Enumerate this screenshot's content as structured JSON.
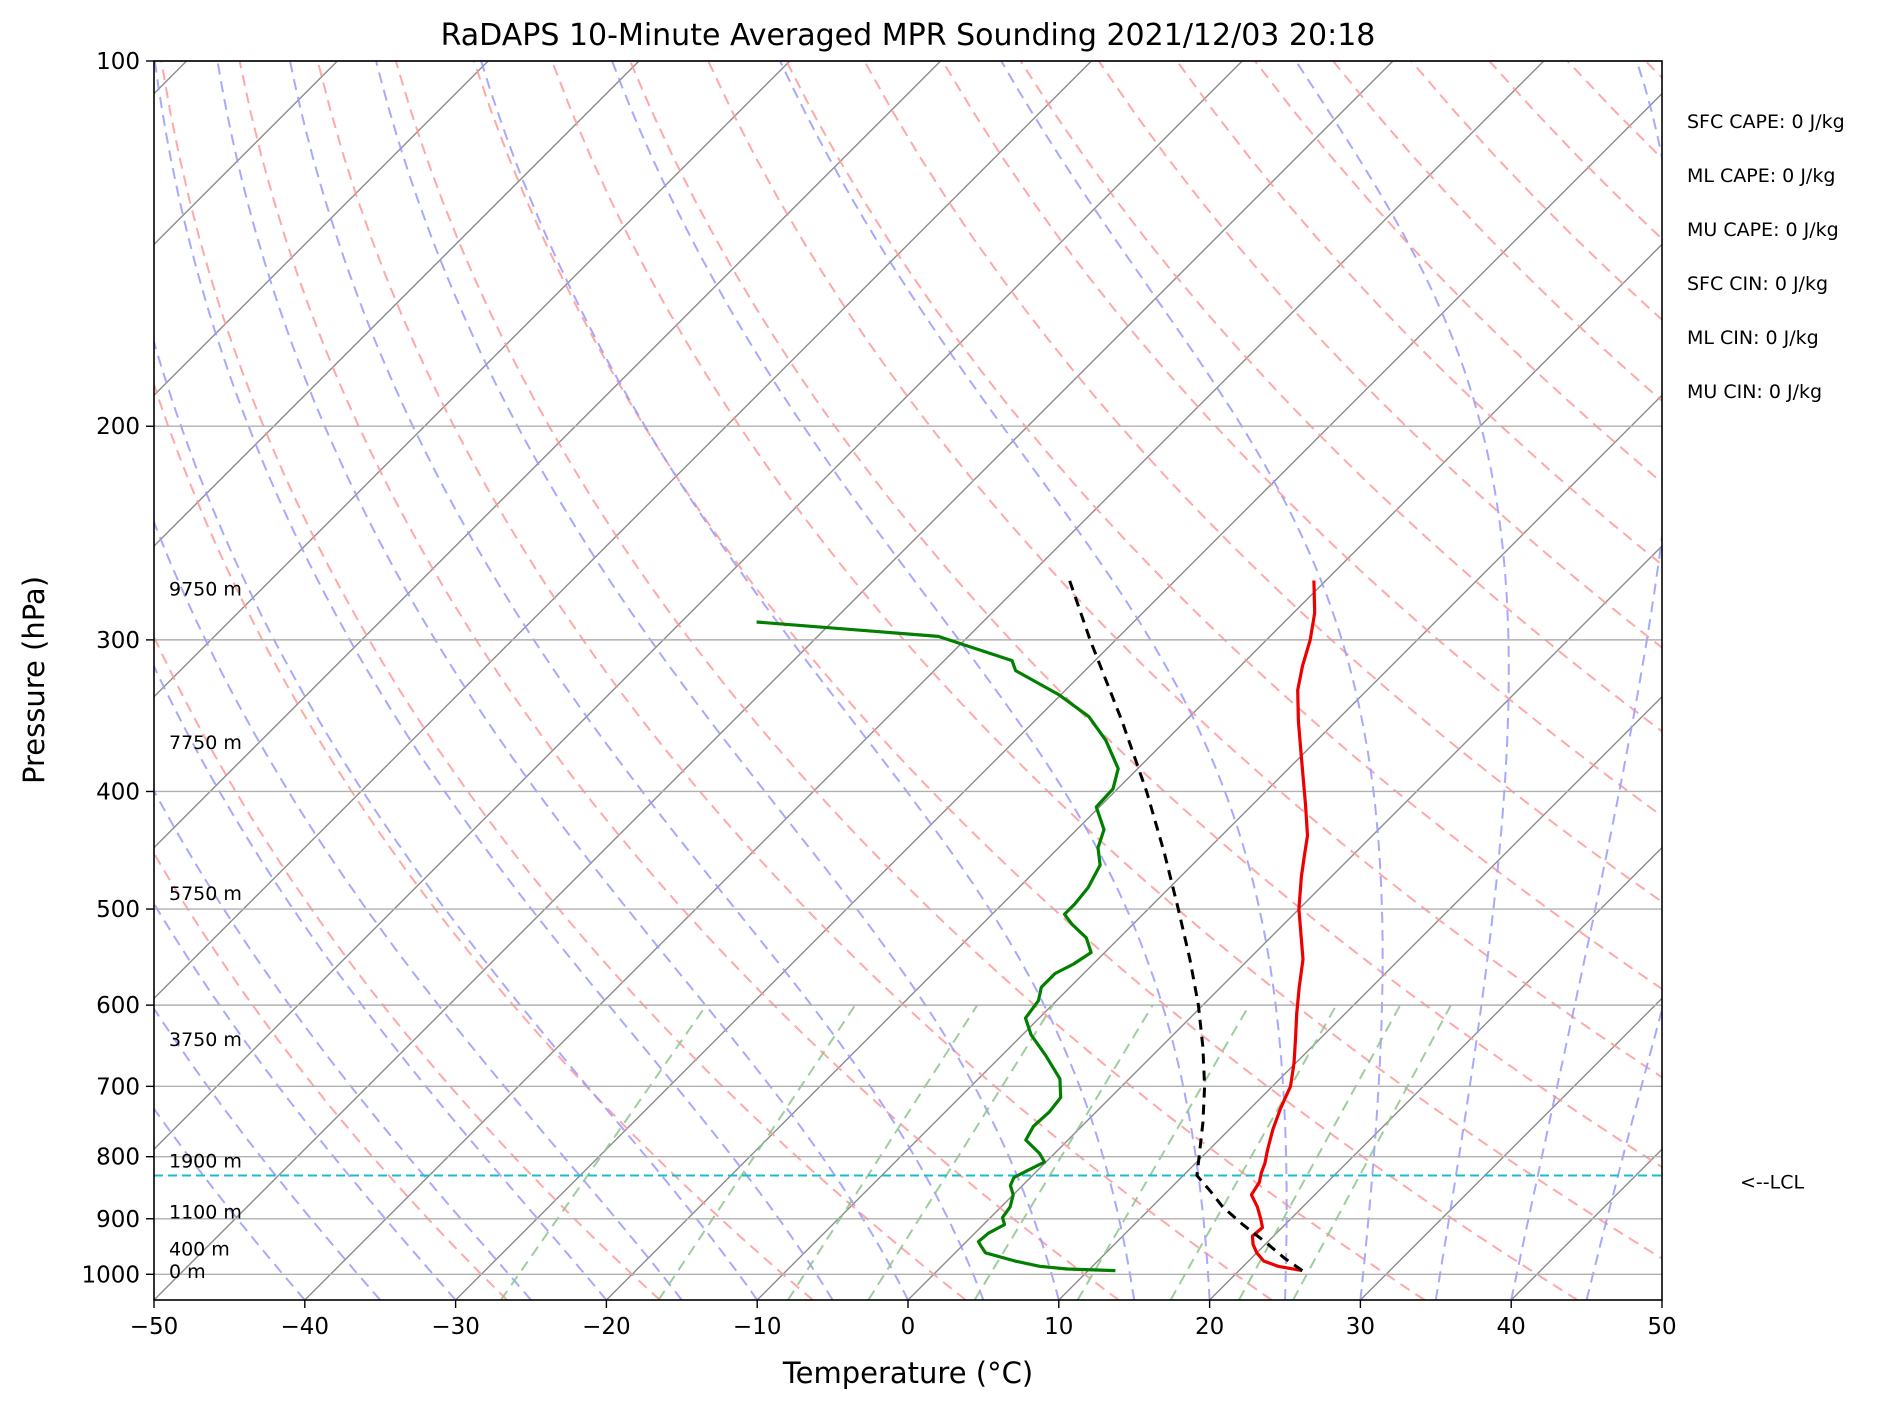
{
  "chart_data": {
    "type": "line",
    "title": "RaDAPS 10-Minute Averaged MPR Sounding 2021/12/03 20:18",
    "xlabel": "Temperature (°C)",
    "ylabel": "Pressure (hPa)",
    "xlim": [
      -50,
      50
    ],
    "ylim": [
      1050,
      100
    ],
    "y_scale": "log",
    "x_ticks": [
      "−50",
      "−40",
      "−30",
      "−20",
      "−10",
      "0",
      "10",
      "20",
      "30",
      "40",
      "50"
    ],
    "y_ticks": [
      {
        "p": 100,
        "label": "100"
      },
      {
        "p": 200,
        "label": "200"
      },
      {
        "p": 300,
        "label": "300"
      },
      {
        "p": 400,
        "label": "400"
      },
      {
        "p": 500,
        "label": "500"
      },
      {
        "p": 600,
        "label": "600"
      },
      {
        "p": 700,
        "label": "700"
      },
      {
        "p": 800,
        "label": "800"
      },
      {
        "p": 900,
        "label": "900"
      },
      {
        "p": 1000,
        "label": "1000"
      }
    ],
    "grid": true,
    "height_labels": [
      {
        "p": 994,
        "text": "0 m"
      },
      {
        "p": 952,
        "text": "400 m"
      },
      {
        "p": 888,
        "text": "1100 m"
      },
      {
        "p": 806,
        "text": "1900 m"
      },
      {
        "p": 640,
        "text": "3750 m"
      },
      {
        "p": 485,
        "text": "5750 m"
      },
      {
        "p": 364,
        "text": "7750 m"
      },
      {
        "p": 272,
        "text": "9750 m"
      }
    ],
    "series": [
      {
        "role": "temperature",
        "color": "#ee0000",
        "points": [
          {
            "p": 993,
            "t": 24.2
          },
          {
            "p": 985,
            "t": 22.3
          },
          {
            "p": 975,
            "t": 21.0
          },
          {
            "p": 960,
            "t": 20.0
          },
          {
            "p": 945,
            "t": 19.2
          },
          {
            "p": 930,
            "t": 18.6
          },
          {
            "p": 915,
            "t": 18.7
          },
          {
            "p": 900,
            "t": 18.0
          },
          {
            "p": 880,
            "t": 17.0
          },
          {
            "p": 860,
            "t": 15.8
          },
          {
            "p": 840,
            "t": 15.5
          },
          {
            "p": 825,
            "t": 15.0
          },
          {
            "p": 810,
            "t": 14.6
          },
          {
            "p": 790,
            "t": 13.9
          },
          {
            "p": 760,
            "t": 12.9
          },
          {
            "p": 730,
            "t": 12.0
          },
          {
            "p": 700,
            "t": 11.2
          },
          {
            "p": 670,
            "t": 9.9
          },
          {
            "p": 640,
            "t": 8.4
          },
          {
            "p": 610,
            "t": 6.8
          },
          {
            "p": 580,
            "t": 5.2
          },
          {
            "p": 550,
            "t": 3.6
          },
          {
            "p": 530,
            "t": 2.2
          },
          {
            "p": 500,
            "t": 0.0
          },
          {
            "p": 470,
            "t": -2.0
          },
          {
            "p": 450,
            "t": -3.3
          },
          {
            "p": 435,
            "t": -4.3
          },
          {
            "p": 410,
            "t": -6.5
          },
          {
            "p": 390,
            "t": -8.4
          },
          {
            "p": 370,
            "t": -10.4
          },
          {
            "p": 350,
            "t": -12.5
          },
          {
            "p": 330,
            "t": -14.6
          },
          {
            "p": 315,
            "t": -15.9
          },
          {
            "p": 300,
            "t": -17.1
          },
          {
            "p": 285,
            "t": -18.6
          },
          {
            "p": 268,
            "t": -20.8
          }
        ]
      },
      {
        "role": "dewpoint",
        "color": "#007f00",
        "points": [
          {
            "p": 993,
            "t": 11.8
          },
          {
            "p": 990,
            "t": 8.5
          },
          {
            "p": 985,
            "t": 6.5
          },
          {
            "p": 975,
            "t": 4.5
          },
          {
            "p": 960,
            "t": 2.0
          },
          {
            "p": 950,
            "t": 1.4
          },
          {
            "p": 940,
            "t": 0.8
          },
          {
            "p": 925,
            "t": 0.9
          },
          {
            "p": 910,
            "t": 1.4
          },
          {
            "p": 898,
            "t": 0.8
          },
          {
            "p": 880,
            "t": 0.6
          },
          {
            "p": 860,
            "t": 0.0
          },
          {
            "p": 845,
            "t": -0.8
          },
          {
            "p": 832,
            "t": -1.1
          },
          {
            "p": 820,
            "t": -0.6
          },
          {
            "p": 808,
            "t": -0.1
          },
          {
            "p": 795,
            "t": -1.0
          },
          {
            "p": 775,
            "t": -2.8
          },
          {
            "p": 755,
            "t": -3.2
          },
          {
            "p": 735,
            "t": -3.1
          },
          {
            "p": 715,
            "t": -3.3
          },
          {
            "p": 690,
            "t": -4.6
          },
          {
            "p": 660,
            "t": -7.1
          },
          {
            "p": 635,
            "t": -9.4
          },
          {
            "p": 615,
            "t": -10.9
          },
          {
            "p": 595,
            "t": -11.2
          },
          {
            "p": 580,
            "t": -11.9
          },
          {
            "p": 565,
            "t": -11.9
          },
          {
            "p": 555,
            "t": -11.3
          },
          {
            "p": 543,
            "t": -10.9
          },
          {
            "p": 528,
            "t": -12.2
          },
          {
            "p": 515,
            "t": -14.0
          },
          {
            "p": 505,
            "t": -15.2
          },
          {
            "p": 495,
            "t": -15.2
          },
          {
            "p": 480,
            "t": -15.4
          },
          {
            "p": 460,
            "t": -16.1
          },
          {
            "p": 445,
            "t": -17.4
          },
          {
            "p": 430,
            "t": -18.2
          },
          {
            "p": 412,
            "t": -20.2
          },
          {
            "p": 398,
            "t": -20.3
          },
          {
            "p": 383,
            "t": -21.3
          },
          {
            "p": 363,
            "t": -24.0
          },
          {
            "p": 347,
            "t": -26.7
          },
          {
            "p": 333,
            "t": -30.1
          },
          {
            "p": 318,
            "t": -34.6
          },
          {
            "p": 312,
            "t": -35.5
          },
          {
            "p": 298,
            "t": -42.0
          },
          {
            "p": 290,
            "t": -55.0
          }
        ]
      },
      {
        "role": "parcel",
        "color": "#000000",
        "points": [
          {
            "p": 993,
            "t": 24.2
          },
          {
            "p": 970,
            "t": 22.2
          },
          {
            "p": 940,
            "t": 19.8
          },
          {
            "p": 910,
            "t": 17.2
          },
          {
            "p": 880,
            "t": 14.7
          },
          {
            "p": 855,
            "t": 12.9
          },
          {
            "p": 829,
            "t": 10.9
          },
          {
            "p": 800,
            "t": 9.8
          },
          {
            "p": 750,
            "t": 7.8
          },
          {
            "p": 700,
            "t": 5.5
          },
          {
            "p": 650,
            "t": 2.8
          },
          {
            "p": 600,
            "t": -0.3
          },
          {
            "p": 550,
            "t": -3.9
          },
          {
            "p": 500,
            "t": -8.0
          },
          {
            "p": 450,
            "t": -12.6
          },
          {
            "p": 400,
            "t": -17.9
          },
          {
            "p": 350,
            "t": -24.2
          },
          {
            "p": 300,
            "t": -31.7
          },
          {
            "p": 268,
            "t": -37.0
          }
        ]
      }
    ],
    "lcl": {
      "p": 829,
      "label": "<--LCL",
      "color": "#17becf"
    },
    "indices": [
      {
        "label": "SFC CAPE: 0 J/kg"
      },
      {
        "label": "ML CAPE: 0 J/kg"
      },
      {
        "label": "MU CAPE: 0 J/kg"
      },
      {
        "label": "SFC CIN: 0 J/kg"
      },
      {
        "label": "ML CIN: 0 J/kg"
      },
      {
        "label": "MU CIN: 0 J/kg"
      }
    ],
    "reference_lines": {
      "isotherm_color": "#8c8c8c",
      "dry_adiabat_color": "#ff9999",
      "moist_adiabat_color": "#9999ff",
      "mixing_ratio_color": "#8cc58c"
    }
  }
}
